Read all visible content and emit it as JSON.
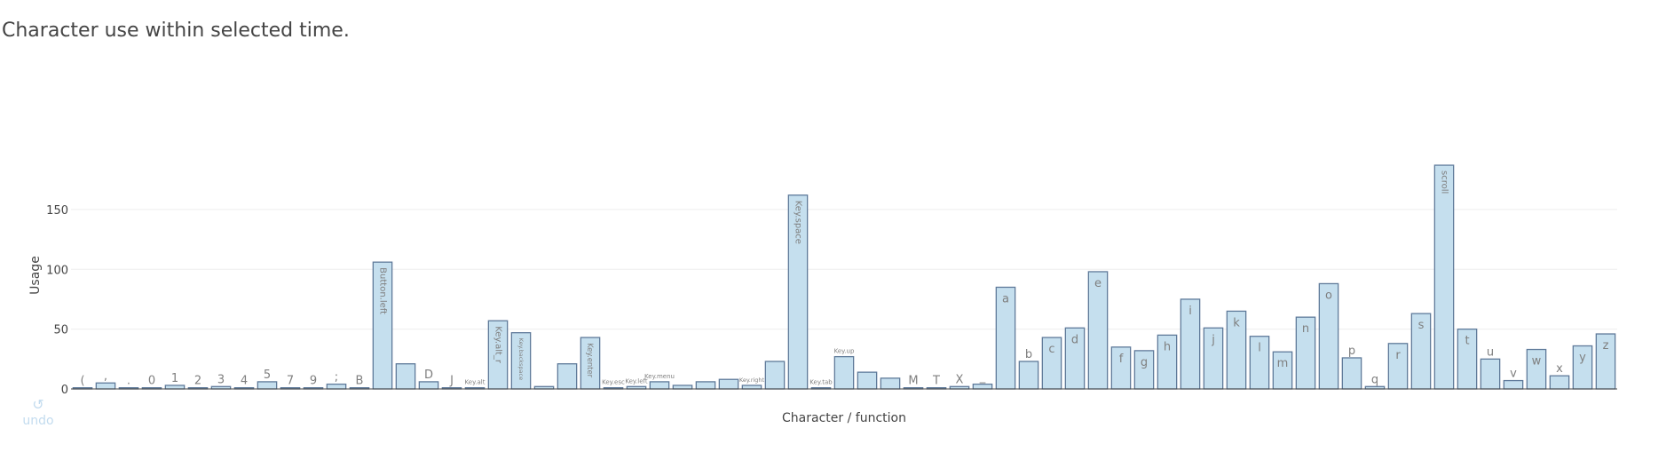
{
  "page_title": "Character use within selected time.",
  "undo": {
    "label": "undo",
    "icon": "undo-icon"
  },
  "chart_data": {
    "type": "bar",
    "xlabel": "Character / function",
    "ylabel": "Usage",
    "ylim": [
      0,
      190
    ],
    "yticks": [
      0,
      50,
      100,
      150
    ],
    "grid": true,
    "bar_color": "#c5dfee",
    "bar_border_color": "#5f7a9a",
    "label_color": "#7f7f7f",
    "gridline_color": "#eeeeee",
    "categories": [
      "(",
      ",",
      ".",
      "0",
      "1",
      "2",
      "3",
      "4",
      "5",
      "7",
      "9",
      ";",
      "B",
      "Button.left",
      "",
      "D",
      "J",
      "Key.alt",
      "Key.alt_r",
      "Key.backspace",
      "",
      "",
      "Key.enter",
      "Key.esc",
      "Key.left",
      "Key.menu",
      "",
      "",
      "",
      "Key.right",
      "",
      "Key.space",
      "Key.tab",
      "Key.up",
      "",
      "",
      "M",
      "T",
      "X",
      "_",
      "a",
      "b",
      "c",
      "d",
      "e",
      "f",
      "g",
      "h",
      "i",
      "j",
      "k",
      "l",
      "m",
      "n",
      "o",
      "p",
      "q",
      "r",
      "s",
      "scroll",
      "t",
      "u",
      "v",
      "w",
      "x",
      "y",
      "z"
    ],
    "values": [
      1,
      5,
      1,
      1,
      3,
      1,
      2,
      1,
      6,
      1,
      1,
      4,
      1,
      106,
      21,
      6,
      1,
      1,
      57,
      47,
      2,
      21,
      43,
      1,
      2,
      6,
      3,
      6,
      8,
      3,
      23,
      162,
      1,
      27,
      14,
      9,
      1,
      1,
      2,
      4,
      85,
      23,
      43,
      51,
      98,
      35,
      32,
      45,
      75,
      51,
      65,
      44,
      31,
      60,
      88,
      26,
      2,
      38,
      63,
      187,
      50,
      25,
      7,
      33,
      11,
      36,
      46
    ]
  }
}
